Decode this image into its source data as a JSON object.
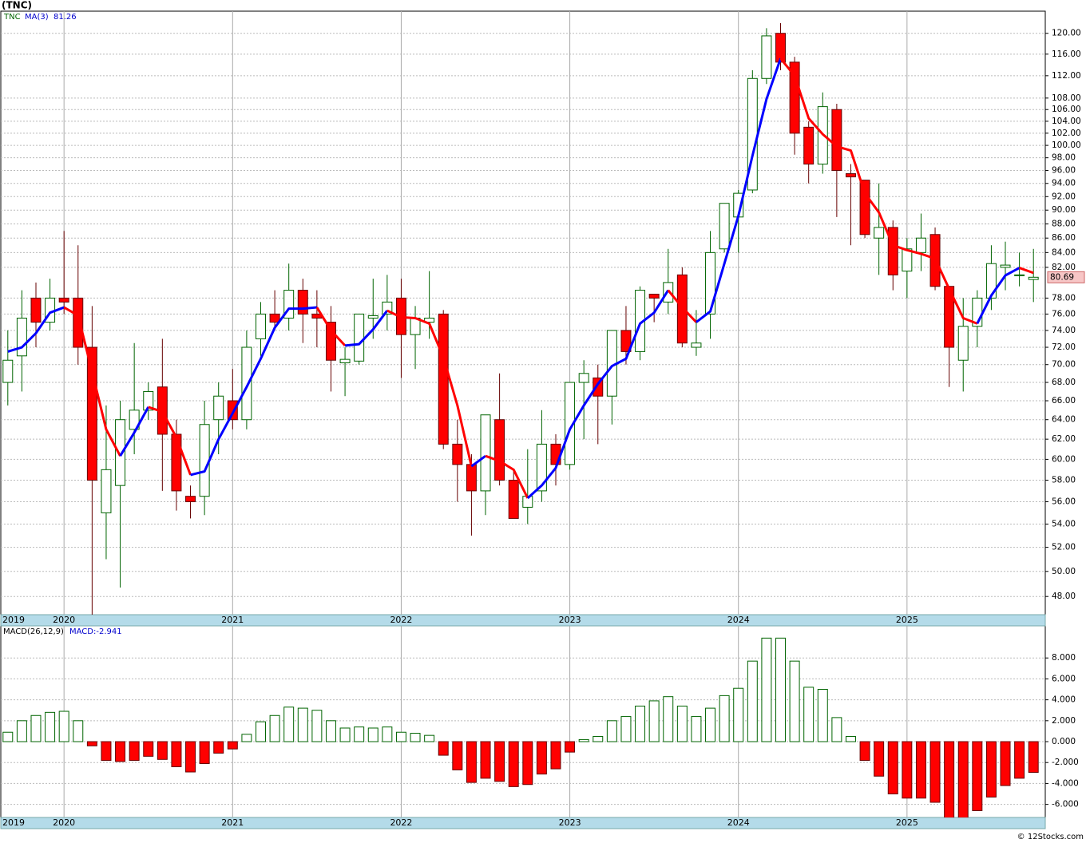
{
  "chart_data": [
    {
      "type": "candlestick",
      "title": "(TNC)",
      "categories": [
        "2019",
        null,
        null,
        null,
        "2020",
        null,
        null,
        null,
        null,
        null,
        null,
        null,
        null,
        null,
        null,
        null,
        "2021",
        null,
        null,
        null,
        null,
        null,
        null,
        null,
        null,
        null,
        null,
        null,
        "2022",
        null,
        null,
        null,
        null,
        null,
        null,
        null,
        null,
        null,
        null,
        null,
        "2023",
        null,
        null,
        null,
        null,
        null,
        null,
        null,
        null,
        null,
        null,
        null,
        "2024",
        null,
        null,
        null,
        null,
        null,
        null,
        null,
        null,
        null,
        null,
        null,
        "2025",
        null,
        null,
        null,
        null,
        null,
        null,
        null,
        null,
        null
      ],
      "series": [
        {
          "name": "TNC",
          "color": "#006400",
          "up_fill": "#ffffff",
          "down_fill": "#ff0000",
          "down_stroke": "#660000",
          "open": [
            68,
            71,
            78,
            75,
            78,
            78,
            72,
            55,
            57.5,
            63,
            65,
            67.5,
            62.5,
            56.5,
            56.5,
            64,
            66,
            64,
            73,
            76,
            75.5,
            79,
            76,
            75,
            70.2,
            70.4,
            75.5,
            76,
            78,
            73.5,
            75,
            76,
            61.5,
            59.5,
            57,
            64,
            58,
            55.5,
            57,
            61.5,
            59.5,
            68,
            68.5,
            66.5,
            74,
            71.5,
            78.5,
            77.5,
            81,
            72,
            76,
            84.5,
            89,
            93,
            111.5,
            120,
            114.5,
            103,
            97,
            106,
            95.5,
            94.5,
            86,
            87.5,
            81.5,
            84,
            86.5,
            79.5,
            70.5,
            74.5,
            78,
            82,
            81,
            80.4
          ],
          "high": [
            74,
            79,
            80,
            80.5,
            87,
            85,
            77,
            65.5,
            66,
            72.5,
            68,
            73,
            64,
            57.5,
            66,
            68,
            69.5,
            74,
            77.5,
            79,
            82.5,
            80.5,
            79,
            77,
            72,
            76,
            80.5,
            81,
            80.5,
            77,
            81.5,
            76.5,
            64,
            60.5,
            64.5,
            69,
            59,
            61,
            65,
            62.5,
            68,
            70.5,
            70,
            74,
            77,
            79.5,
            78.5,
            84.5,
            82,
            76.5,
            87,
            91,
            93,
            113,
            121,
            122,
            115.5,
            104,
            109,
            107,
            97,
            94.5,
            94,
            88.5,
            86,
            89.5,
            87.5,
            79.5,
            78,
            79,
            85,
            85.5,
            84,
            84.5
          ],
          "low": [
            65.5,
            67,
            72,
            74,
            76,
            70,
            45,
            51,
            48.7,
            60.5,
            64,
            57,
            55.2,
            54.5,
            54.8,
            60.5,
            63,
            63,
            71,
            74,
            74,
            72.5,
            72,
            67,
            66.5,
            70,
            73,
            74,
            68.5,
            69.5,
            73,
            61,
            56,
            53,
            54.8,
            57.5,
            54.5,
            54,
            56,
            57.5,
            59,
            62,
            61.5,
            63.5,
            70,
            70.5,
            75,
            76,
            72,
            71,
            73,
            84,
            84,
            92.5,
            110.5,
            113,
            98.5,
            94,
            95.5,
            89,
            85,
            86,
            81,
            79,
            78,
            81.5,
            79,
            67.5,
            67,
            72,
            76.5,
            79,
            79.5,
            77.5
          ],
          "close": [
            70.5,
            75.5,
            75,
            78,
            77.5,
            72,
            58,
            59,
            64,
            65,
            67,
            62.5,
            57,
            56,
            63.5,
            66.5,
            64,
            72,
            76,
            75,
            79,
            76,
            75.5,
            70.5,
            70.6,
            76,
            75.8,
            77.5,
            73.5,
            75.5,
            75.5,
            61.5,
            59.5,
            57,
            64.5,
            58,
            54.5,
            56.5,
            61.5,
            59.5,
            68,
            69,
            66.5,
            74,
            71.5,
            79,
            78,
            80,
            72.5,
            72.5,
            84,
            91,
            92.5,
            111.5,
            119.5,
            114.5,
            102,
            97,
            106.5,
            96,
            95,
            86.5,
            87.5,
            81,
            84.5,
            86,
            79.5,
            72,
            74.5,
            78,
            82.5,
            82.3,
            81,
            80.69
          ],
          "last_label": "80.69"
        },
        {
          "name": "MA(3)",
          "type": "line",
          "up_color": "#0000ff",
          "down_color": "#ff0000",
          "last_label": "81.26",
          "values": [
            71.5,
            72,
            73.67,
            76.17,
            76.83,
            75.83,
            69.17,
            63,
            60.33,
            62.67,
            65.33,
            64.83,
            62.17,
            58.5,
            58.83,
            62,
            64.67,
            67.5,
            70.67,
            74.33,
            76.67,
            76.67,
            76.83,
            74,
            72.2,
            72.37,
            74.13,
            76.43,
            75.6,
            75.5,
            74.83,
            70.83,
            65.5,
            59.33,
            60.33,
            59.83,
            59,
            56.33,
            57.5,
            59.17,
            63,
            65.5,
            67.83,
            69.83,
            70.67,
            74.83,
            76.17,
            79,
            76.83,
            75,
            76.33,
            82.5,
            89.17,
            98.33,
            107.83,
            115.17,
            112,
            104.5,
            101.83,
            99.83,
            99.17,
            92.5,
            89.67,
            85,
            84.33,
            83.83,
            83.17,
            79.17,
            75.5,
            74.83,
            78.33,
            80.93,
            81.93,
            81.26
          ]
        }
      ],
      "log_scale": true,
      "grid": true,
      "ylim": [
        46.6,
        124.4
      ],
      "yticks": [
        {
          "value": 48,
          "label": "48.00"
        },
        {
          "value": 50,
          "label": "50.00"
        },
        {
          "value": 52,
          "label": "52.00"
        },
        {
          "value": 54,
          "label": "54.00"
        },
        {
          "value": 56,
          "label": "56.00"
        },
        {
          "value": 58,
          "label": "58.00"
        },
        {
          "value": 60,
          "label": "60.00"
        },
        {
          "value": 62,
          "label": "62.00"
        },
        {
          "value": 64,
          "label": "64.00"
        },
        {
          "value": 66,
          "label": "66.00"
        },
        {
          "value": 68,
          "label": "68.00"
        },
        {
          "value": 70,
          "label": "70.00"
        },
        {
          "value": 72,
          "label": "72.00"
        },
        {
          "value": 74,
          "label": "74.00"
        },
        {
          "value": 76,
          "label": "76.00"
        },
        {
          "value": 78,
          "label": "78.00"
        },
        {
          "value": 82,
          "label": "82.00"
        },
        {
          "value": 84,
          "label": "84.00"
        },
        {
          "value": 86,
          "label": "86.00"
        },
        {
          "value": 88,
          "label": "88.00"
        },
        {
          "value": 90,
          "label": "90.00"
        },
        {
          "value": 92,
          "label": "92.00"
        },
        {
          "value": 94,
          "label": "94.00"
        },
        {
          "value": 96,
          "label": "96.00"
        },
        {
          "value": 98,
          "label": "98.00"
        },
        {
          "value": 100,
          "label": "100.00"
        },
        {
          "value": 102,
          "label": "102.00"
        },
        {
          "value": 104,
          "label": "104.00"
        },
        {
          "value": 106,
          "label": "106.00"
        },
        {
          "value": 108,
          "label": "108.00"
        },
        {
          "value": 112,
          "label": "112.00"
        },
        {
          "value": 116,
          "label": "116.00"
        },
        {
          "value": 120,
          "label": "120.00"
        }
      ],
      "source": "© 12Stocks.com"
    },
    {
      "type": "bar",
      "title": "MACD(26,12,9)",
      "legend_value": "MACD:-2.941",
      "legend_color": "#0000cc",
      "up_color": "#006400",
      "down_color": "#ff0000",
      "values": [
        0.9,
        2.0,
        2.5,
        2.8,
        2.9,
        2.0,
        -0.4,
        -1.8,
        -1.9,
        -1.8,
        -1.4,
        -1.7,
        -2.4,
        -2.9,
        -2.1,
        -1.1,
        -0.7,
        0.7,
        1.9,
        2.5,
        3.3,
        3.2,
        3.0,
        2.0,
        1.3,
        1.4,
        1.3,
        1.4,
        0.9,
        0.8,
        0.6,
        -1.3,
        -2.7,
        -3.9,
        -3.5,
        -3.8,
        -4.3,
        -4.1,
        -3.1,
        -2.6,
        -1.0,
        0.2,
        0.5,
        2.0,
        2.4,
        3.4,
        3.9,
        4.3,
        3.4,
        2.4,
        3.2,
        4.4,
        5.1,
        7.7,
        9.9,
        9.9,
        7.7,
        5.2,
        5.0,
        2.3,
        0.5,
        -1.8,
        -3.3,
        -5.0,
        -5.4,
        -5.4,
        -5.8,
        -7.3,
        -7.3,
        -6.6,
        -5.3,
        -4.2,
        -3.5,
        -2.941
      ],
      "grid": true,
      "ylim": [
        -7.25,
        11.07
      ],
      "yticks": [
        {
          "value": -6,
          "label": "-6.000"
        },
        {
          "value": -4,
          "label": "-4.000"
        },
        {
          "value": -2,
          "label": "-2.000"
        },
        {
          "value": 0,
          "label": "0.000"
        },
        {
          "value": 2,
          "label": "2.000"
        },
        {
          "value": 4,
          "label": "4.000"
        },
        {
          "value": 6,
          "label": "6.000"
        },
        {
          "value": 8,
          "label": "8.000"
        }
      ]
    }
  ]
}
